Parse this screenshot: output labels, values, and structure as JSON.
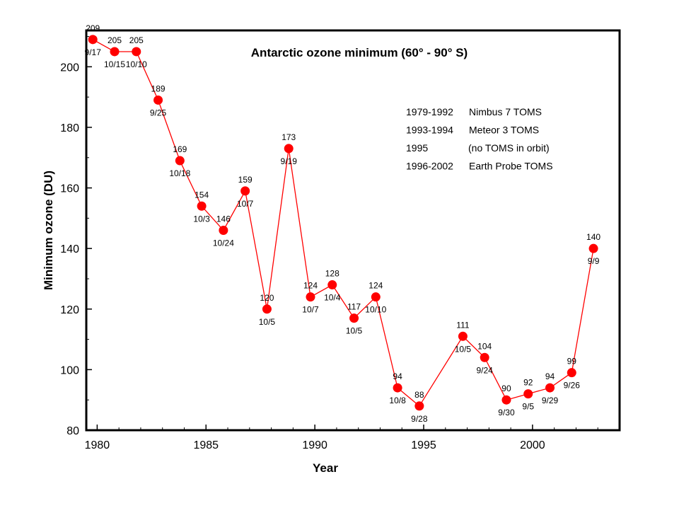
{
  "chart_data": {
    "type": "line",
    "title": "Antarctic ozone minimum (60° - 90° S)",
    "xlabel": "Year",
    "ylabel": "Minimum ozone (DU)",
    "xlim": [
      1979.5,
      2004
    ],
    "ylim": [
      80,
      212
    ],
    "x_ticks": [
      1980,
      1985,
      1990,
      1995,
      2000
    ],
    "y_ticks": [
      80,
      100,
      120,
      140,
      160,
      180,
      200
    ],
    "grid": false,
    "legend": "none",
    "series_color": "#ff0000",
    "line_color": "#ff0000",
    "points": [
      {
        "x": 1979.8,
        "y": 209,
        "value_label": "209",
        "date_label": "9/17"
      },
      {
        "x": 1980.8,
        "y": 205,
        "value_label": "205",
        "date_label": "10/15"
      },
      {
        "x": 1981.8,
        "y": 205,
        "value_label": "205",
        "date_label": "10/10"
      },
      {
        "x": 1982.8,
        "y": 189,
        "value_label": "189",
        "date_label": "9/25"
      },
      {
        "x": 1983.8,
        "y": 169,
        "value_label": "169",
        "date_label": "10/18"
      },
      {
        "x": 1984.8,
        "y": 154,
        "value_label": "154",
        "date_label": "10/3"
      },
      {
        "x": 1985.8,
        "y": 146,
        "value_label": "146",
        "date_label": "10/24"
      },
      {
        "x": 1986.8,
        "y": 159,
        "value_label": "159",
        "date_label": "10/7"
      },
      {
        "x": 1987.8,
        "y": 120,
        "value_label": "120",
        "date_label": "10/5"
      },
      {
        "x": 1988.8,
        "y": 173,
        "value_label": "173",
        "date_label": "9/19"
      },
      {
        "x": 1989.8,
        "y": 124,
        "value_label": "124",
        "date_label": "10/7"
      },
      {
        "x": 1990.8,
        "y": 128,
        "value_label": "128",
        "date_label": "10/4"
      },
      {
        "x": 1991.8,
        "y": 117,
        "value_label": "117",
        "date_label": "10/5"
      },
      {
        "x": 1992.8,
        "y": 124,
        "value_label": "124",
        "date_label": "10/10"
      },
      {
        "x": 1993.8,
        "y": 94,
        "value_label": "94",
        "date_label": "10/8"
      },
      {
        "x": 1994.8,
        "y": 88,
        "value_label": "88",
        "date_label": "9/28"
      },
      {
        "x": 1996.8,
        "y": 111,
        "value_label": "111",
        "date_label": "10/5"
      },
      {
        "x": 1997.8,
        "y": 104,
        "value_label": "104",
        "date_label": "9/24"
      },
      {
        "x": 1998.8,
        "y": 90,
        "value_label": "90",
        "date_label": "9/30"
      },
      {
        "x": 1999.8,
        "y": 92,
        "value_label": "92",
        "date_label": "9/5"
      },
      {
        "x": 2000.8,
        "y": 94,
        "value_label": "94",
        "date_label": "9/29"
      },
      {
        "x": 2001.8,
        "y": 99,
        "value_label": "99",
        "date_label": "9/26"
      },
      {
        "x": 2002.8,
        "y": 140,
        "value_label": "140",
        "date_label": "9/9"
      }
    ],
    "annotations": [
      {
        "years": "1979-1992",
        "instrument": "Nimbus 7 TOMS"
      },
      {
        "years": "1993-1994",
        "instrument": "Meteor 3 TOMS"
      },
      {
        "years": "1995",
        "instrument": "(no TOMS in orbit)"
      },
      {
        "years": "1996-2002",
        "instrument": "Earth Probe TOMS"
      }
    ]
  }
}
